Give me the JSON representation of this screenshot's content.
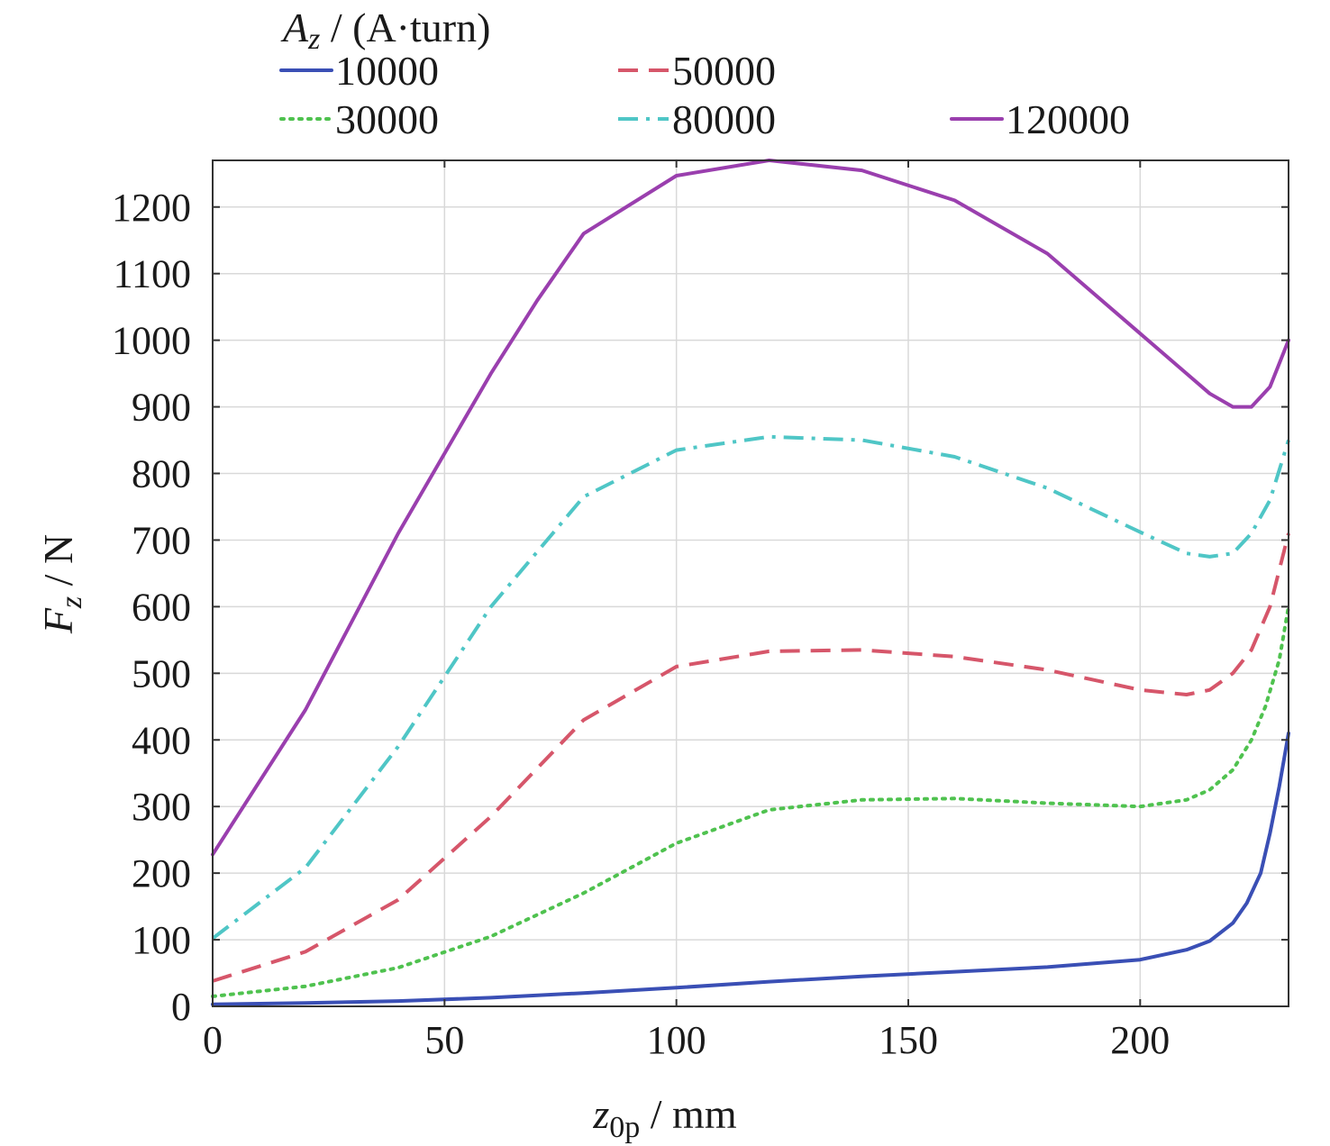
{
  "chart_data": {
    "type": "line",
    "legend": {
      "title_symbol": "A",
      "title_subscript": "z",
      "title_unit": " / (A·turn)"
    },
    "xaxis": {
      "label_symbol": "z",
      "label_subscript": "0p",
      "label_unit": " / mm",
      "range": [
        0,
        232
      ],
      "ticks": [
        0,
        50,
        100,
        150,
        200
      ],
      "tick_labels": [
        "0",
        "50",
        "100",
        "150",
        "200"
      ]
    },
    "yaxis": {
      "label_symbol": "F",
      "label_subscript": "z",
      "label_unit": " / N",
      "range": [
        0,
        1270
      ],
      "ticks": [
        0,
        100,
        200,
        300,
        400,
        500,
        600,
        700,
        800,
        900,
        1000,
        1100,
        1200
      ],
      "tick_labels": [
        "0",
        "100",
        "200",
        "300",
        "400",
        "500",
        "600",
        "700",
        "800",
        "900",
        "1000",
        "1100",
        "1200"
      ]
    },
    "grid": true,
    "series": [
      {
        "name": "10000",
        "color": "#3a4fb5",
        "dash": "solid",
        "x": [
          0,
          20,
          40,
          60,
          80,
          100,
          120,
          140,
          160,
          180,
          200,
          210,
          215,
          220,
          223,
          226,
          228,
          230,
          232
        ],
        "y": [
          3,
          5,
          8,
          13,
          20,
          28,
          37,
          45,
          52,
          59,
          70,
          85,
          98,
          125,
          155,
          200,
          260,
          330,
          410
        ]
      },
      {
        "name": "30000",
        "color": "#4fc24f",
        "dash": "dotted",
        "x": [
          0,
          20,
          40,
          60,
          80,
          100,
          120,
          140,
          160,
          180,
          200,
          210,
          215,
          220,
          224,
          227,
          230,
          232
        ],
        "y": [
          15,
          30,
          58,
          105,
          170,
          245,
          295,
          310,
          312,
          305,
          300,
          310,
          325,
          355,
          400,
          450,
          520,
          600
        ]
      },
      {
        "name": "50000",
        "color": "#d6566a",
        "dash": "dashed",
        "x": [
          0,
          20,
          40,
          60,
          80,
          100,
          120,
          140,
          160,
          180,
          200,
          210,
          215,
          220,
          224,
          228,
          232
        ],
        "y": [
          38,
          82,
          160,
          285,
          430,
          510,
          533,
          535,
          525,
          505,
          475,
          468,
          475,
          500,
          535,
          600,
          710
        ]
      },
      {
        "name": "80000",
        "color": "#4fc6c6",
        "dash": "dashdot",
        "x": [
          0,
          20,
          40,
          60,
          80,
          100,
          120,
          140,
          160,
          180,
          200,
          210,
          215,
          220,
          224,
          228,
          232
        ],
        "y": [
          102,
          208,
          390,
          600,
          765,
          835,
          855,
          850,
          825,
          778,
          712,
          680,
          675,
          680,
          710,
          760,
          850
        ]
      },
      {
        "name": "120000",
        "color": "#9a3fae",
        "dash": "solid",
        "x": [
          0,
          20,
          40,
          60,
          70,
          80,
          100,
          120,
          140,
          160,
          180,
          200,
          210,
          215,
          220,
          224,
          228,
          232
        ],
        "y": [
          228,
          445,
          710,
          950,
          1060,
          1160,
          1247,
          1270,
          1255,
          1210,
          1130,
          1010,
          950,
          920,
          900,
          900,
          930,
          1000
        ]
      }
    ]
  }
}
